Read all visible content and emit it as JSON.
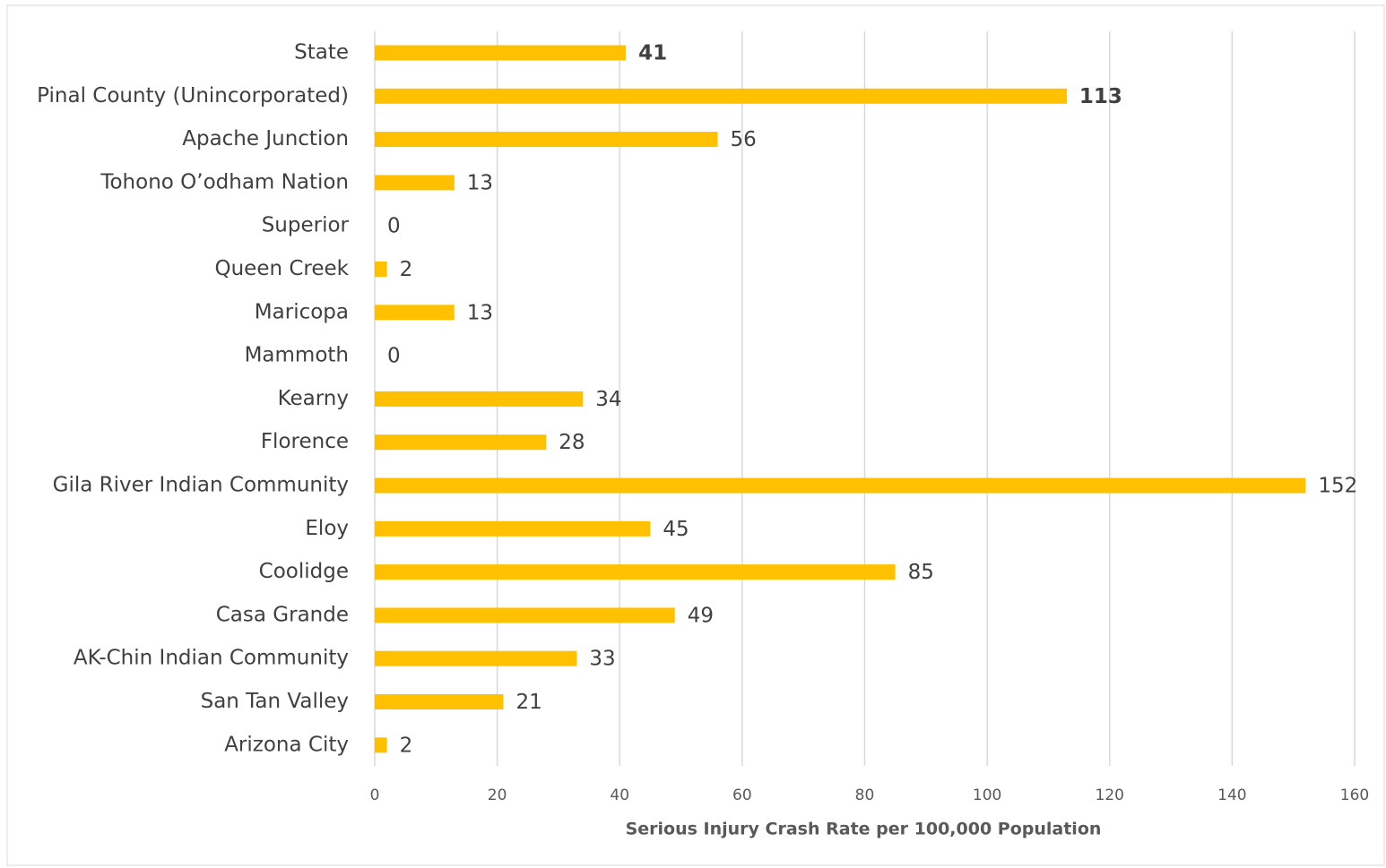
{
  "chart_data": {
    "type": "hbar",
    "x_label": "Serious Injury Crash Rate per 100,000 Population",
    "categories": [
      "State",
      "Pinal County (Unincorporated)",
      "Apache Junction",
      "Tohono O’odham Nation",
      "Superior",
      "Queen Creek",
      "Maricopa",
      "Mammoth",
      "Kearny",
      "Florence",
      "Gila River Indian Community",
      "Eloy",
      "Coolidge",
      "Casa Grande",
      "AK-Chin Indian Community",
      "San Tan Valley",
      "Arizona City"
    ],
    "values": [
      41,
      113,
      56,
      13,
      0,
      2,
      13,
      0,
      34,
      28,
      152,
      45,
      85,
      49,
      33,
      21,
      2
    ],
    "bold_values": [
      true,
      true,
      false,
      false,
      false,
      false,
      false,
      false,
      false,
      false,
      false,
      false,
      false,
      false,
      false,
      false,
      false
    ],
    "color": "#FFC000",
    "xlim": [
      0,
      160
    ],
    "xticks": [
      0,
      20,
      40,
      60,
      80,
      100,
      120,
      140,
      160
    ],
    "grid": true
  }
}
